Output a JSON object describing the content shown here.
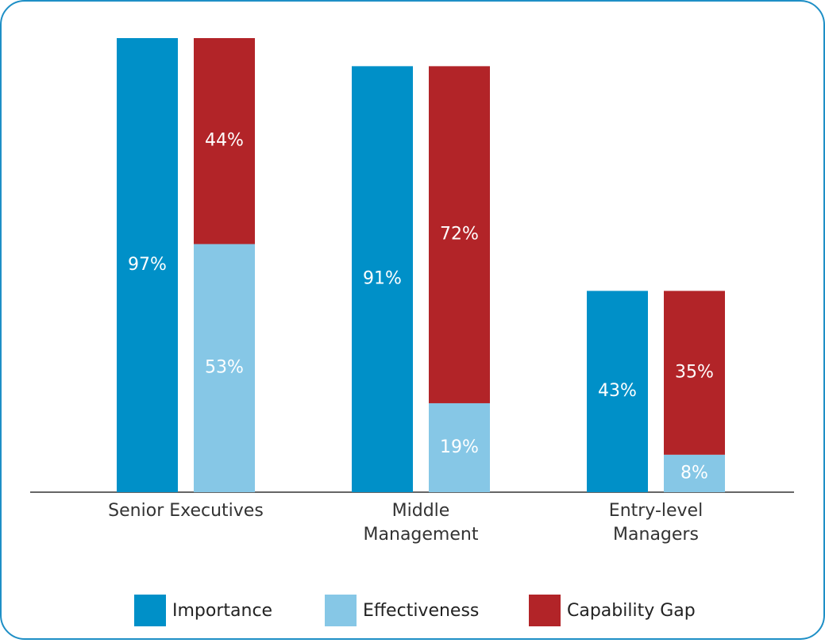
{
  "chart_data": {
    "type": "bar",
    "categories": [
      "Senior Executives",
      "Middle\nManagement",
      "Entry-level\nManagers"
    ],
    "series": [
      {
        "name": "Importance",
        "color": "#0090c8",
        "stack": 0,
        "values": [
          97,
          91,
          43
        ],
        "value_labels": [
          "97%",
          "91%",
          "43%"
        ]
      },
      {
        "name": "Effectiveness",
        "color": "#86c7e6",
        "stack": 1,
        "values": [
          53,
          19,
          8
        ],
        "value_labels": [
          "53%",
          "19%",
          "8%"
        ]
      },
      {
        "name": "Capability Gap",
        "color": "#b22428",
        "stack": 1,
        "values": [
          44,
          72,
          35
        ],
        "value_labels": [
          "44%",
          "72%",
          "35%"
        ]
      }
    ]
  }
}
